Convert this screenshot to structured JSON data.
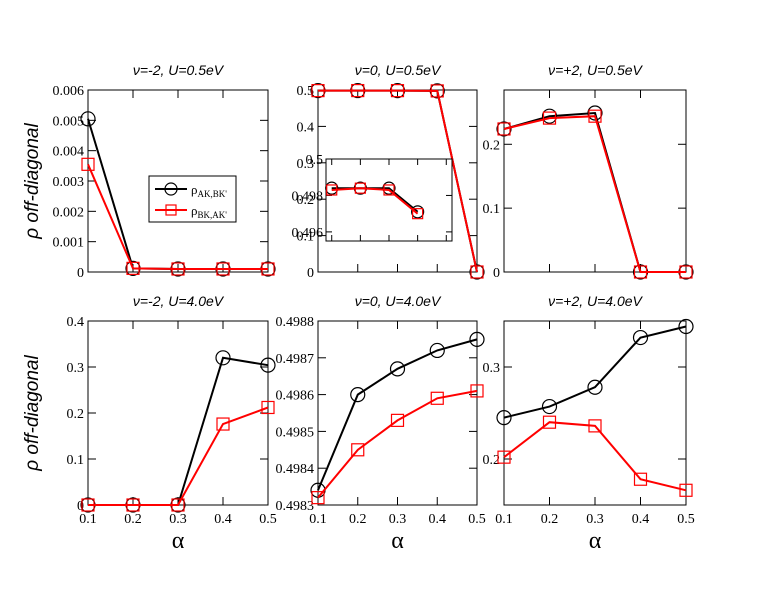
{
  "chart_data": [
    {
      "type": "line",
      "title": "ν=-2, U=0.5eV",
      "ylabel": "ρ off-diagonal",
      "xlabel": "",
      "xlim": [
        0.1,
        0.5
      ],
      "ylim": [
        0,
        0.006
      ],
      "xticks": [],
      "yticks": [
        0,
        0.001,
        0.002,
        0.003,
        0.004,
        0.005,
        0.006
      ],
      "yticklabels": [
        "0",
        "0.001",
        "0.002",
        "0.003",
        "0.004",
        "0.005",
        "0.006"
      ],
      "x": [
        0.1,
        0.2,
        0.3,
        0.4,
        0.5
      ],
      "series": [
        {
          "name": "ρAK,BK'",
          "color": "#000000",
          "marker": "circle",
          "values": [
            0.00505,
            0.00012,
            0.0001,
            0.0001,
            0.0001
          ]
        },
        {
          "name": "ρBK,AK'",
          "color": "#ff0000",
          "marker": "square",
          "values": [
            0.00355,
            0.00012,
            0.0001,
            0.0001,
            0.0001
          ]
        }
      ],
      "legend": {
        "position": "center-right",
        "entries": [
          {
            "main": "ρ",
            "sub": "AK,BK'",
            "color": "#000000",
            "marker": "circle"
          },
          {
            "main": "ρ",
            "sub": "BK,AK'",
            "color": "#ff0000",
            "marker": "square"
          }
        ]
      }
    },
    {
      "type": "line",
      "title": "ν=0, U=0.5eV",
      "xlabel": "",
      "xlim": [
        0.1,
        0.5
      ],
      "ylim": [
        0,
        0.5
      ],
      "xticks": [],
      "yticks": [
        0,
        0.1,
        0.2,
        0.3,
        0.4,
        0.5
      ],
      "yticklabels": [
        "0",
        "0.1",
        "0.2",
        "0.3",
        "0.4",
        "0.5"
      ],
      "x": [
        0.1,
        0.2,
        0.3,
        0.4,
        0.5
      ],
      "series": [
        {
          "name": "ρAK,BK'",
          "color": "#000000",
          "marker": "circle",
          "values": [
            0.4984,
            0.4984,
            0.4983,
            0.4975,
            0.0
          ]
        },
        {
          "name": "ρBK,AK'",
          "color": "#ff0000",
          "marker": "square",
          "values": [
            0.4983,
            0.4984,
            0.4983,
            0.4975,
            0.0
          ]
        }
      ],
      "inset": {
        "xlim": [
          0.08,
          0.52
        ],
        "ylim": [
          0.4955,
          0.5
        ],
        "yticks": [
          0.496,
          0.498,
          0.5
        ],
        "yticklabels": [
          "0.496",
          "0.498",
          "0.5"
        ],
        "x": [
          0.1,
          0.2,
          0.3,
          0.4
        ],
        "series": [
          {
            "name": "ρAK,BK'",
            "color": "#000000",
            "marker": "circle",
            "values": [
              0.4984,
              0.4984,
              0.4984,
              0.4971
            ]
          },
          {
            "name": "ρBK,AK'",
            "color": "#ff0000",
            "marker": "square",
            "values": [
              0.4983,
              0.4984,
              0.4983,
              0.497
            ]
          }
        ]
      }
    },
    {
      "type": "line",
      "title": "ν=+2, U=0.5eV",
      "xlabel": "",
      "xlim": [
        0.1,
        0.5
      ],
      "ylim": [
        0,
        0.285
      ],
      "xticks": [],
      "yticks": [
        0,
        0.1,
        0.2
      ],
      "yticklabels": [
        "0",
        "0.1",
        "0.2"
      ],
      "x": [
        0.1,
        0.2,
        0.3,
        0.4,
        0.5
      ],
      "series": [
        {
          "name": "ρAK,BK'",
          "color": "#000000",
          "marker": "circle",
          "values": [
            0.224,
            0.244,
            0.249,
            0.0,
            0.0
          ]
        },
        {
          "name": "ρBK,AK'",
          "color": "#ff0000",
          "marker": "square",
          "values": [
            0.224,
            0.241,
            0.244,
            0.0,
            0.0
          ]
        }
      ]
    },
    {
      "type": "line",
      "title": "ν=-2, U=4.0eV",
      "ylabel": "ρ off-diagonal",
      "xlabel": "α",
      "xlim": [
        0.1,
        0.5
      ],
      "ylim": [
        0,
        0.4
      ],
      "xticks": [
        0.1,
        0.2,
        0.3,
        0.4,
        0.5
      ],
      "xticklabels": [
        "0.1",
        "0.2",
        "0.3",
        "0.4",
        "0.5"
      ],
      "yticks": [
        0,
        0.1,
        0.2,
        0.3,
        0.4
      ],
      "yticklabels": [
        "0",
        "0.1",
        "0.2",
        "0.3",
        "0.4"
      ],
      "x": [
        0.1,
        0.2,
        0.3,
        0.4,
        0.5
      ],
      "series": [
        {
          "name": "ρAK,BK'",
          "color": "#000000",
          "marker": "circle",
          "values": [
            0.0,
            0.0,
            0.0,
            0.32,
            0.304
          ]
        },
        {
          "name": "ρBK,AK'",
          "color": "#ff0000",
          "marker": "square",
          "values": [
            0.0,
            0.0,
            0.0,
            0.176,
            0.212
          ]
        }
      ]
    },
    {
      "type": "line",
      "title": "ν=0, U=4.0eV",
      "xlabel": "α",
      "xlim": [
        0.1,
        0.5
      ],
      "ylim": [
        0.4983,
        0.4988
      ],
      "xticks": [
        0.1,
        0.2,
        0.3,
        0.4,
        0.5
      ],
      "xticklabels": [
        "0.1",
        "0.2",
        "0.3",
        "0.4",
        "0.5"
      ],
      "yticks": [
        0.4983,
        0.4984,
        0.4985,
        0.4986,
        0.4987,
        0.4988
      ],
      "yticklabels": [
        "0.4983",
        "0.4984",
        "0.4985",
        "0.4986",
        "0.4987",
        "0.4988"
      ],
      "x": [
        0.1,
        0.2,
        0.3,
        0.4,
        0.5
      ],
      "series": [
        {
          "name": "ρAK,BK'",
          "color": "#000000",
          "marker": "circle",
          "values": [
            0.49834,
            0.4986,
            0.49867,
            0.49872,
            0.49875
          ]
        },
        {
          "name": "ρBK,AK'",
          "color": "#ff0000",
          "marker": "square",
          "values": [
            0.49832,
            0.49845,
            0.49853,
            0.49859,
            0.49861
          ]
        }
      ]
    },
    {
      "type": "line",
      "title": "ν=+2, U=4.0eV",
      "xlabel": "α",
      "xlim": [
        0.1,
        0.5
      ],
      "ylim": [
        0.15,
        0.35
      ],
      "xticks": [
        0.1,
        0.2,
        0.3,
        0.4,
        0.5
      ],
      "xticklabels": [
        "0.1",
        "0.2",
        "0.3",
        "0.4",
        "0.5"
      ],
      "yticks": [
        0.2,
        0.3
      ],
      "yticklabels": [
        "0.2",
        "0.3"
      ],
      "x": [
        0.1,
        0.2,
        0.3,
        0.4,
        0.5
      ],
      "series": [
        {
          "name": "ρAK,BK'",
          "color": "#000000",
          "marker": "circle",
          "values": [
            0.245,
            0.257,
            0.278,
            0.332,
            0.344
          ]
        },
        {
          "name": "ρBK,AK'",
          "color": "#ff0000",
          "marker": "square",
          "values": [
            0.202,
            0.24,
            0.236,
            0.178,
            0.166
          ]
        }
      ]
    }
  ]
}
